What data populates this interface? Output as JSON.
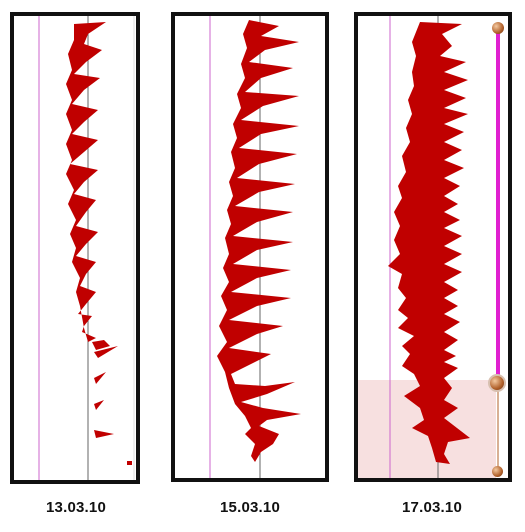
{
  "panels": [
    {
      "date": "13.03.10"
    },
    {
      "date": "15.03.10"
    },
    {
      "date": "17.03.10"
    }
  ],
  "colors": {
    "trace": "#c00000",
    "guide_line": "#cc66cc",
    "baseline": "#666666",
    "slider_track": "#e020d0",
    "slider_handle": "#b0602a",
    "selection_fill": "#f7e0e0"
  },
  "icons": {
    "slider_top": "knob-icon",
    "slider_middle": "knob-icon",
    "slider_bottom": "knob-icon"
  }
}
